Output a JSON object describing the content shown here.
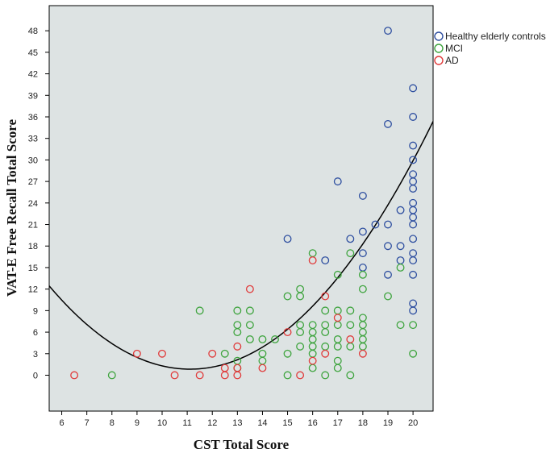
{
  "chart_data": {
    "type": "scatter",
    "xlabel": "CST Total Score",
    "ylabel": "VAT-E Free Recall Total Score",
    "xlim": [
      5.5,
      20.8
    ],
    "ylim": [
      -5,
      51.5
    ],
    "xticks": [
      6,
      7,
      8,
      9,
      10,
      11,
      12,
      13,
      14,
      15,
      16,
      17,
      18,
      19,
      20
    ],
    "yticks": [
      0,
      3,
      6,
      9,
      12,
      15,
      18,
      21,
      24,
      27,
      30,
      33,
      36,
      39,
      42,
      45,
      48
    ],
    "grid": false,
    "legend_position": "outside-top-right",
    "plot_background": "#dde3e3",
    "fit_curve": {
      "kind": "quadratic",
      "coefficients": [
        46.3,
        -8.18,
        0.368
      ]
    },
    "series": [
      {
        "name": "Healthy elderly controls",
        "color": "#2e4fa0",
        "points": [
          [
            19,
            48
          ],
          [
            20,
            40
          ],
          [
            20,
            36
          ],
          [
            19,
            35
          ],
          [
            20,
            32
          ],
          [
            20,
            30
          ],
          [
            20,
            28
          ],
          [
            17,
            27
          ],
          [
            20,
            27
          ],
          [
            20,
            26
          ],
          [
            18,
            25
          ],
          [
            20,
            24
          ],
          [
            19.5,
            23
          ],
          [
            20,
            23
          ],
          [
            20,
            22
          ],
          [
            18.5,
            21
          ],
          [
            19,
            21
          ],
          [
            20,
            21
          ],
          [
            18,
            20
          ],
          [
            15,
            19
          ],
          [
            17.5,
            19
          ],
          [
            20,
            19
          ],
          [
            19,
            18
          ],
          [
            19.5,
            18
          ],
          [
            18,
            17
          ],
          [
            20,
            17
          ],
          [
            16.5,
            16
          ],
          [
            19.5,
            16
          ],
          [
            20,
            16
          ],
          [
            18,
            15
          ],
          [
            19,
            14
          ],
          [
            20,
            14
          ],
          [
            20,
            10
          ],
          [
            20,
            9
          ]
        ]
      },
      {
        "name": "MCI",
        "color": "#3ea43e",
        "points": [
          [
            8,
            0
          ],
          [
            11.5,
            9
          ],
          [
            12.5,
            3
          ],
          [
            13,
            9
          ],
          [
            13,
            7
          ],
          [
            13,
            6
          ],
          [
            13,
            2
          ],
          [
            13,
            1
          ],
          [
            13.5,
            9
          ],
          [
            13.5,
            7
          ],
          [
            13.5,
            5
          ],
          [
            14,
            5
          ],
          [
            14,
            3
          ],
          [
            14,
            2
          ],
          [
            14.5,
            5
          ],
          [
            15,
            11
          ],
          [
            15,
            3
          ],
          [
            15,
            0
          ],
          [
            15.5,
            12
          ],
          [
            15.5,
            11
          ],
          [
            15.5,
            7
          ],
          [
            15.5,
            6
          ],
          [
            15.5,
            4
          ],
          [
            16,
            17
          ],
          [
            16,
            7
          ],
          [
            16,
            6
          ],
          [
            16,
            5
          ],
          [
            16,
            4
          ],
          [
            16,
            3
          ],
          [
            16,
            1
          ],
          [
            16.5,
            9
          ],
          [
            16.5,
            7
          ],
          [
            16.5,
            6
          ],
          [
            16.5,
            4
          ],
          [
            16.5,
            0
          ],
          [
            17,
            14
          ],
          [
            17,
            9
          ],
          [
            17,
            7
          ],
          [
            17,
            5
          ],
          [
            17,
            4
          ],
          [
            17,
            2
          ],
          [
            17,
            1
          ],
          [
            17.5,
            17
          ],
          [
            17.5,
            9
          ],
          [
            17.5,
            7
          ],
          [
            17.5,
            4
          ],
          [
            17.5,
            0
          ],
          [
            18,
            14
          ],
          [
            18,
            12
          ],
          [
            18,
            8
          ],
          [
            18,
            7
          ],
          [
            18,
            6
          ],
          [
            18,
            5
          ],
          [
            18,
            4
          ],
          [
            19,
            11
          ],
          [
            19.5,
            15
          ],
          [
            19.5,
            7
          ],
          [
            20,
            7
          ],
          [
            20,
            3
          ]
        ]
      },
      {
        "name": "AD",
        "color": "#e03a3a",
        "points": [
          [
            6.5,
            0
          ],
          [
            9,
            3
          ],
          [
            10,
            3
          ],
          [
            10.5,
            0
          ],
          [
            11.5,
            0
          ],
          [
            12,
            3
          ],
          [
            12.5,
            1
          ],
          [
            12.5,
            0
          ],
          [
            13,
            4
          ],
          [
            13,
            1
          ],
          [
            13,
            0
          ],
          [
            13.5,
            12
          ],
          [
            14,
            1
          ],
          [
            15,
            6
          ],
          [
            15.5,
            0
          ],
          [
            16,
            16
          ],
          [
            16,
            2
          ],
          [
            16.5,
            11
          ],
          [
            16.5,
            3
          ],
          [
            17,
            8
          ],
          [
            17.5,
            5
          ],
          [
            18,
            3
          ]
        ]
      }
    ]
  }
}
